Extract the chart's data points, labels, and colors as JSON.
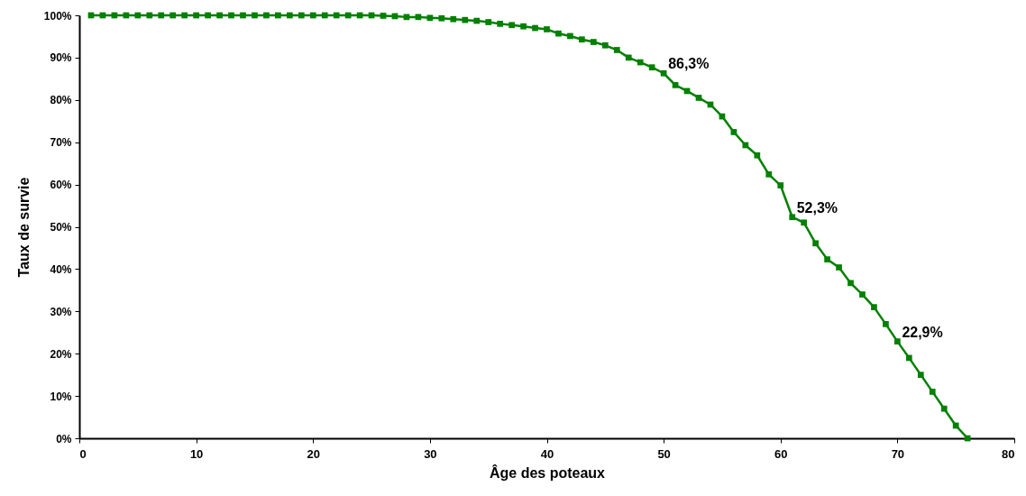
{
  "chart_data": {
    "type": "line",
    "xlabel": "Âge des poteaux",
    "ylabel": "Taux de survie",
    "x": [
      1,
      2,
      3,
      4,
      5,
      6,
      7,
      8,
      9,
      10,
      11,
      12,
      13,
      14,
      15,
      16,
      17,
      18,
      19,
      20,
      21,
      22,
      23,
      24,
      25,
      26,
      27,
      28,
      29,
      30,
      31,
      32,
      33,
      34,
      35,
      36,
      37,
      38,
      39,
      40,
      41,
      42,
      43,
      44,
      45,
      46,
      47,
      48,
      49,
      50,
      51,
      52,
      53,
      54,
      55,
      56,
      57,
      58,
      59,
      60,
      61,
      62,
      63,
      64,
      65,
      66,
      67,
      68,
      69,
      70,
      71,
      72,
      73,
      74,
      75,
      76
    ],
    "series": [
      {
        "color": "#008000",
        "values": [
          100,
          100,
          100,
          100,
          100,
          100,
          100,
          100,
          100,
          100,
          100,
          100,
          100,
          100,
          100,
          100,
          100,
          100,
          100,
          100,
          100,
          100,
          100,
          100,
          100,
          99.9,
          99.8,
          99.6,
          99.6,
          99.4,
          99.3,
          99.1,
          98.9,
          98.7,
          98.4,
          98.0,
          97.7,
          97.4,
          97.0,
          96.7,
          95.7,
          95.1,
          94.3,
          93.7,
          92.9,
          91.8,
          90.0,
          88.9,
          87.7,
          86.3,
          83.5,
          82.1,
          80.5,
          78.9,
          76.1,
          72.4,
          69.3,
          66.9,
          62.4,
          59.8,
          52.3,
          51.0,
          46.1,
          42.3,
          40.4,
          36.7,
          34.0,
          31.0,
          27.0,
          22.9,
          19.0,
          15.0,
          11.0,
          7.0,
          3.0,
          0
        ],
        "value_labels": [
          null,
          null,
          null,
          null,
          null,
          null,
          null,
          null,
          null,
          null,
          null,
          null,
          null,
          null,
          null,
          null,
          null,
          null,
          null,
          null,
          null,
          null,
          null,
          null,
          null,
          null,
          null,
          null,
          null,
          null,
          null,
          null,
          null,
          null,
          null,
          null,
          null,
          null,
          null,
          null,
          null,
          null,
          null,
          null,
          null,
          null,
          null,
          null,
          null,
          "86,3%",
          null,
          null,
          null,
          null,
          null,
          null,
          null,
          null,
          null,
          null,
          "52,3%",
          null,
          null,
          null,
          null,
          null,
          null,
          null,
          null,
          "22,9%",
          null,
          null,
          null,
          null,
          null,
          null
        ]
      }
    ],
    "xlim": [
      0,
      80
    ],
    "xticks": [
      0,
      10,
      20,
      30,
      40,
      50,
      60,
      70,
      80
    ],
    "ylim": [
      0,
      100
    ],
    "yticks": [
      {
        "value": 0,
        "label": "0%"
      },
      {
        "value": 10,
        "label": "10%"
      },
      {
        "value": 20,
        "label": "20%"
      },
      {
        "value": 30,
        "label": "30%"
      },
      {
        "value": 40,
        "label": "40%"
      },
      {
        "value": 50,
        "label": "50%"
      },
      {
        "value": 60,
        "label": "60%"
      },
      {
        "value": 70,
        "label": "70%"
      },
      {
        "value": 80,
        "label": "80%"
      },
      {
        "value": 90,
        "label": "90%"
      },
      {
        "value": 100,
        "label": "100%"
      }
    ],
    "grid": false,
    "marker": "square",
    "line_style": "solid"
  }
}
